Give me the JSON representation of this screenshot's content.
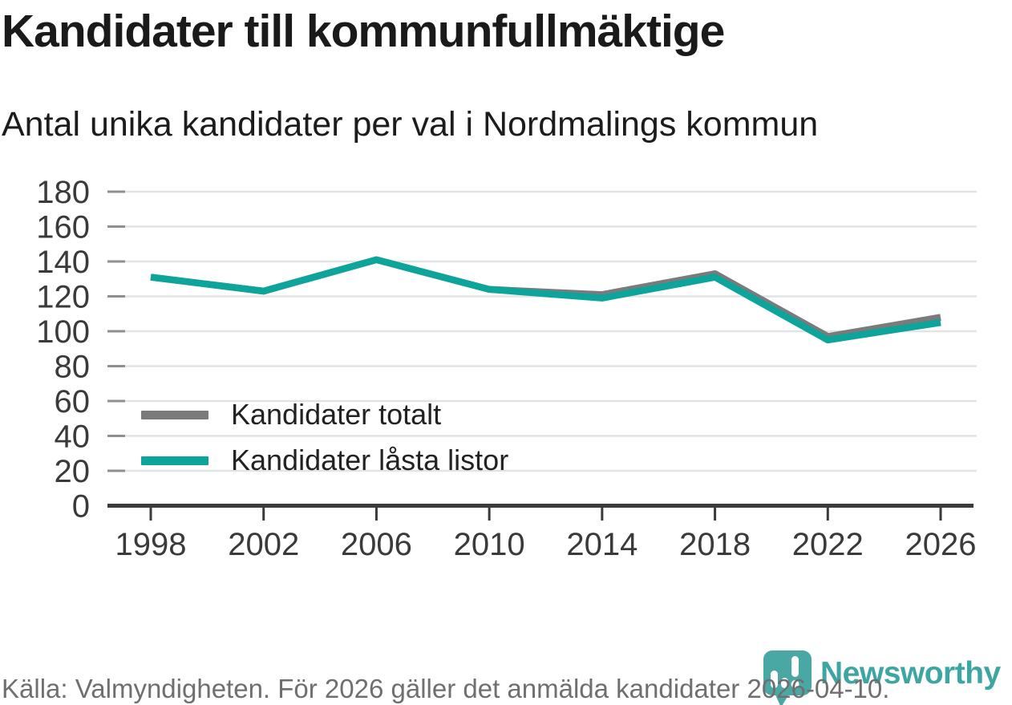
{
  "header": {
    "title": "Kandidater till kommunfullmäktige",
    "subtitle": "Antal unika kandidater per val i Nordmalings kommun"
  },
  "footer": {
    "source": "Källa: Valmyndigheten. För 2026 gäller det anmälda kandidater 2026-04-10."
  },
  "logo": {
    "wordmark": "Newsworthy",
    "mark_color": "#4aa8a4",
    "text_color": "#3da5a2"
  },
  "colors": {
    "series_total": "#7b7b7b",
    "series_locked": "#0ca49b",
    "gridline": "#e3e3e3",
    "axis": "#3a3a3a",
    "tick": "#8f8f8f",
    "axis_label": "#3a3a3a"
  },
  "chart_data": {
    "type": "line",
    "title": "Kandidater till kommunfullmäktige",
    "subtitle": "Antal unika kandidater per val i Nordmalings kommun",
    "x": [
      "1998",
      "2002",
      "2006",
      "2010",
      "2014",
      "2018",
      "2022",
      "2026"
    ],
    "series": [
      {
        "name": "Kandidater totalt",
        "color": "#7b7b7b",
        "values": [
          131,
          123,
          141,
          124,
          121,
          133,
          97,
          108
        ]
      },
      {
        "name": "Kandidater låsta listor",
        "color": "#0ca49b",
        "values": [
          131,
          123,
          141,
          124,
          119,
          131,
          95,
          105
        ]
      }
    ],
    "xlabel": "",
    "ylabel": "",
    "ylim": [
      0,
      180
    ],
    "yticks": [
      0,
      20,
      40,
      60,
      80,
      100,
      120,
      140,
      160,
      180
    ],
    "grid": true,
    "legend_position": "inside lower-left"
  }
}
